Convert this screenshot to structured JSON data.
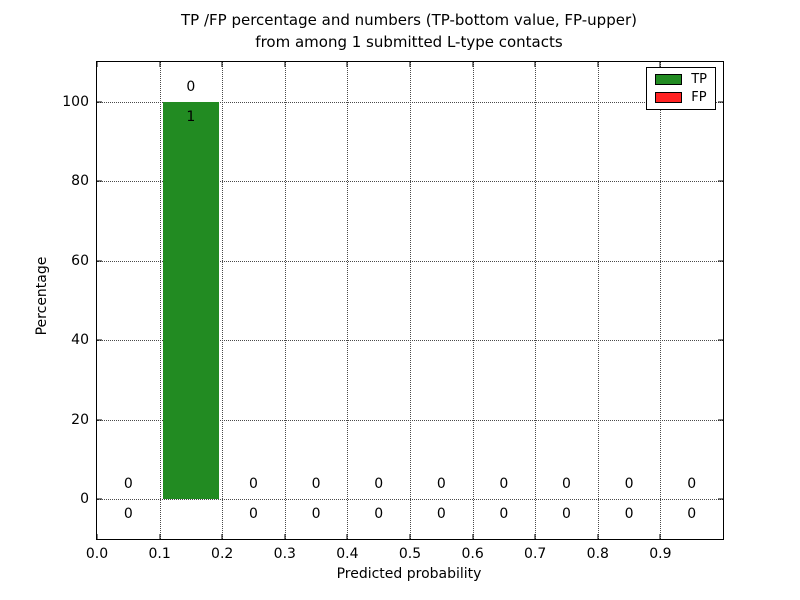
{
  "chart_data": {
    "type": "bar",
    "title_lines": [
      "TP /FP percentage and numbers (TP-bottom value, FP-upper)",
      "from among 1 submitted L-type contacts"
    ],
    "xlabel": "Predicted probability",
    "ylabel": "Percentage",
    "xlim": [
      0.0,
      1.0
    ],
    "ylim": [
      -10,
      110
    ],
    "x_ticks": {
      "values": [
        0.0,
        0.1,
        0.2,
        0.3,
        0.4,
        0.5,
        0.6,
        0.7,
        0.8,
        0.9
      ],
      "labels": [
        "0.0",
        "0.1",
        "0.2",
        "0.3",
        "0.4",
        "0.5",
        "0.6",
        "0.7",
        "0.8",
        "0.9"
      ]
    },
    "y_ticks": {
      "values": [
        0,
        20,
        40,
        60,
        80,
        100
      ],
      "labels": [
        "0",
        "20",
        "40",
        "60",
        "80",
        "100"
      ]
    },
    "grid": {
      "on": true,
      "linestyle": "dotted",
      "color": "#4a4a4a"
    },
    "bin_edges": [
      0.0,
      0.1,
      0.2,
      0.3,
      0.4,
      0.5,
      0.6,
      0.7,
      0.8,
      0.9,
      1.0
    ],
    "series": [
      {
        "name": "TP",
        "color": "#228b22",
        "counts": [
          0,
          1,
          0,
          0,
          0,
          0,
          0,
          0,
          0,
          0
        ],
        "percentages": [
          0,
          100,
          0,
          0,
          0,
          0,
          0,
          0,
          0,
          0
        ],
        "count_label_position": "below-stack-top"
      },
      {
        "name": "FP",
        "color": "#ff2222",
        "counts": [
          0,
          0,
          0,
          0,
          0,
          0,
          0,
          0,
          0,
          0
        ],
        "percentages": [
          0,
          0,
          0,
          0,
          0,
          0,
          0,
          0,
          0,
          0
        ],
        "count_label_position": "above-stack-top"
      }
    ],
    "legend": {
      "position": "upper-right",
      "entries": [
        {
          "label": "TP",
          "color": "#228b22"
        },
        {
          "label": "FP",
          "color": "#ff2222"
        }
      ]
    }
  }
}
